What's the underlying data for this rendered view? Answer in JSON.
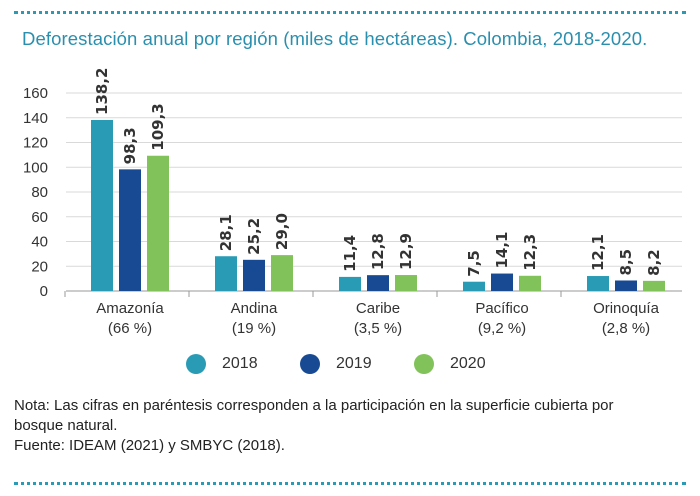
{
  "title": "Deforestación anual por región (miles de hectáreas). Colombia, 2018-2020.",
  "chart_data": {
    "type": "bar",
    "title": "Deforestación anual por región (miles de hectáreas). Colombia, 2018-2020.",
    "categories": [
      "Amazonía",
      "Andina",
      "Caribe",
      "Pacífico",
      "Orinoquía"
    ],
    "category_subtitles": [
      "(66 %)",
      "(19 %)",
      "(3,5 %)",
      "(9,2 %)",
      "(2,8 %)"
    ],
    "series": [
      {
        "name": "2018",
        "values": [
          138.2,
          28.1,
          11.4,
          7.5,
          12.1
        ],
        "labels": [
          "138,2",
          "28,1",
          "11,4",
          "7,5",
          "12,1"
        ],
        "color": "#2a9bb5"
      },
      {
        "name": "2019",
        "values": [
          98.3,
          25.2,
          12.8,
          14.1,
          8.5
        ],
        "labels": [
          "98,3",
          "25,2",
          "12,8",
          "14,1",
          "8,5"
        ],
        "color": "#184a94"
      },
      {
        "name": "2020",
        "values": [
          109.3,
          29.0,
          12.9,
          12.3,
          8.2
        ],
        "labels": [
          "109,3",
          "29,0",
          "12,9",
          "12,3",
          "8,2"
        ],
        "color": "#82c25a"
      }
    ],
    "yticks": [
      0,
      20,
      40,
      60,
      80,
      100,
      120,
      140,
      160
    ],
    "ylim": [
      0,
      160
    ],
    "grid": true,
    "legend_position": "bottom"
  },
  "notes": [
    "Nota: Las cifras en paréntesis corresponden a la participación en la superficie cubierta por",
    "bosque natural.",
    "Fuente: IDEAM (2021) y SMBYC (2018)."
  ]
}
